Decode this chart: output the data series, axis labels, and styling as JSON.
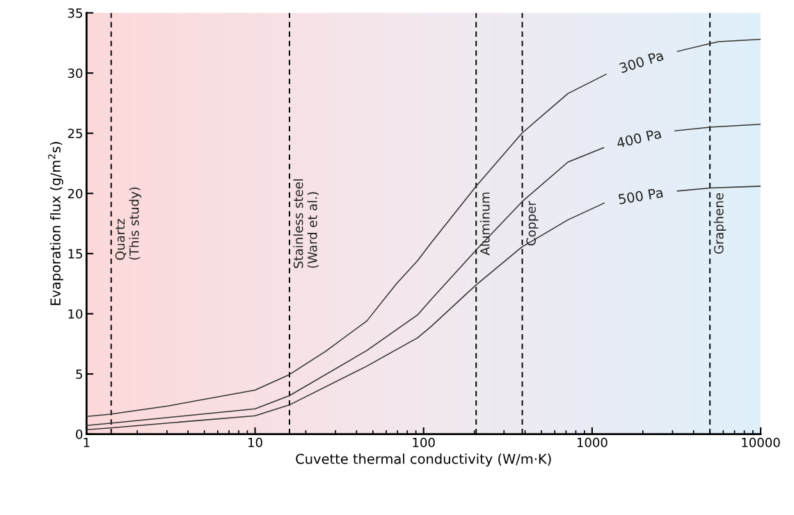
{
  "chart_data": {
    "type": "line",
    "xlabel": "Cuvette thermal conductivity (W/m·K)",
    "ylabel": "Evaporation flux (g/m$^{2}$s)",
    "log": "x",
    "xlim": [
      1,
      10000
    ],
    "xticks": [
      1,
      10,
      100,
      1000,
      10000
    ],
    "ylim": [
      0,
      35
    ],
    "yticks": [
      0,
      5,
      10,
      15,
      20,
      25,
      30,
      35
    ],
    "grid": false,
    "legend": false,
    "marker": "none",
    "line_style": "solid",
    "series": [
      {
        "name": "300 Pa",
        "color": "#333333",
        "x": [
          1,
          1.38,
          3.07,
          10,
          16,
          26,
          46,
          69,
          92,
          111,
          205,
          383,
          718,
          1210,
          2000,
          3210,
          5000,
          5620,
          10000
        ],
        "values": [
          1.47,
          1.65,
          2.35,
          3.66,
          4.95,
          6.85,
          9.4,
          12.5,
          14.4,
          15.9,
          20.6,
          25.0,
          28.3,
          29.9,
          null,
          31.8,
          32.45,
          32.6,
          32.8
        ]
      },
      {
        "name": "400 Pa",
        "color": "#333333",
        "x": [
          1,
          1.38,
          10,
          16,
          46,
          92,
          111,
          205,
          383,
          718,
          1170,
          2000,
          3100,
          5000,
          10000
        ],
        "values": [
          0.72,
          0.9,
          2.1,
          3.2,
          6.95,
          9.9,
          11.2,
          15.3,
          19.3,
          22.6,
          23.8,
          null,
          25.2,
          25.5,
          25.75
        ]
      },
      {
        "name": "500 Pa",
        "color": "#333333",
        "x": [
          1,
          1.38,
          10,
          16,
          46,
          92,
          111,
          205,
          383,
          718,
          1180,
          2000,
          3210,
          5000,
          10000
        ],
        "values": [
          0.37,
          0.52,
          1.53,
          2.43,
          5.65,
          8.0,
          8.95,
          12.4,
          15.55,
          17.8,
          19.2,
          null,
          20.2,
          20.45,
          20.6
        ]
      }
    ],
    "ref_lines": [
      {
        "axis": "x",
        "value": 1.4,
        "label": "Quartz\n(This study)",
        "color": "#000000",
        "line_style": "dashed"
      },
      {
        "axis": "x",
        "value": 16,
        "label": "Stainless steel\n(Ward et al.)",
        "color": "#000000",
        "line_style": "dashed"
      },
      {
        "axis": "x",
        "value": 205,
        "label": "Aluminum",
        "color": "#000000",
        "line_style": "dashed"
      },
      {
        "axis": "x",
        "value": 385,
        "label": "Copper",
        "color": "#000000",
        "line_style": "dashed"
      },
      {
        "axis": "x",
        "value": 5000,
        "label": "Graphene",
        "color": "#000000",
        "line_style": "dashed"
      }
    ]
  }
}
